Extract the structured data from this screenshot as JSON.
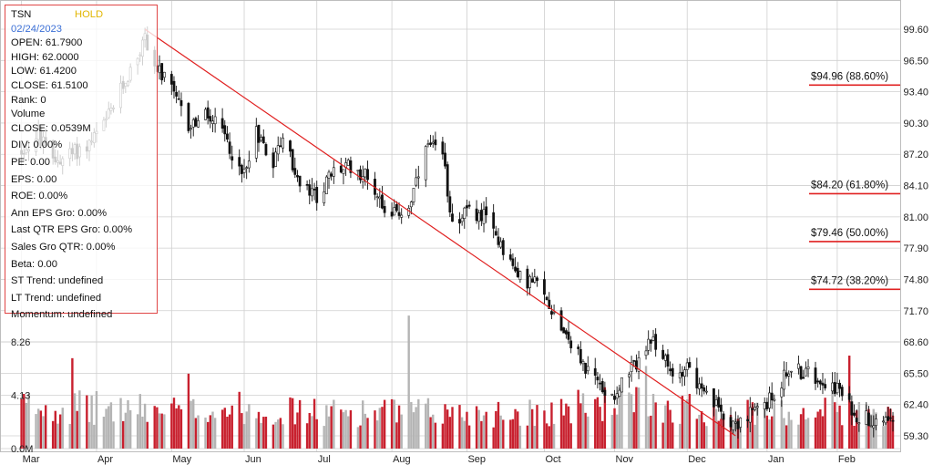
{
  "info": {
    "ticker": "TSN",
    "rating": "HOLD",
    "date": "02/24/2023",
    "open": "OPEN: 61.7900",
    "high": "HIGH: 62.0000",
    "low": "LOW: 61.4200",
    "close": "CLOSE: 61.5100",
    "rank": "Rank: 0",
    "volume_label": "Volume",
    "volume_close": "CLOSE: 0.0539M",
    "div": "DIV: 0.00%",
    "pe": "PE: 0.00",
    "eps": "EPS: 0.00",
    "roe": "ROE: 0.00%",
    "ann_eps_gro": "Ann EPS Gro: 0.00%",
    "last_qtr_eps_gro": "Last QTR EPS Gro: 0.00%",
    "sales_gro_qtr": "Sales Gro QTR: 0.00%",
    "beta": "Beta: 0.00",
    "st_trend": "ST Trend: undefined",
    "lt_trend": "LT Trend: undefined",
    "momentum": "Momentum: undefined"
  },
  "colors": {
    "trendline": "#e02020",
    "fib_line": "#e02020",
    "candle": "#111111",
    "volume_up": "#c8202e",
    "volume_down": "#b4b4b4",
    "grid": "#cfcfcf",
    "panel_border": "#e04545",
    "rating": "#e2b600",
    "date": "#3b6fd6"
  },
  "chart_data": {
    "type": "candlestick",
    "y_ticks": [
      "99.60",
      "96.50",
      "93.40",
      "90.30",
      "87.20",
      "84.10",
      "81.00",
      "77.90",
      "74.80",
      "71.70",
      "68.60",
      "65.50",
      "62.40",
      "59.30"
    ],
    "volume_ticks": [
      "8.26",
      "4.13",
      "0.0M"
    ],
    "months": [
      "Mar",
      "Apr",
      "May",
      "Jun",
      "Jul",
      "Aug",
      "Sep",
      "Oct",
      "Nov",
      "Dec",
      "Jan",
      "Feb"
    ],
    "fib_levels": [
      {
        "label": "$94.96 (88.60%)",
        "price": 94.96
      },
      {
        "label": "$84.20 (61.80%)",
        "price": 84.2
      },
      {
        "label": "$79.46 (50.00%)",
        "price": 79.46
      },
      {
        "label": "$74.72 (38.20%)",
        "price": 74.72
      }
    ],
    "trendline": {
      "from": {
        "date": "2022-04-21",
        "price": 99.6
      },
      "to": {
        "date": "2022-12-21",
        "price": 59.3
      }
    },
    "price_anchors": [
      [
        "2022-03-01",
        87.5
      ],
      [
        "2022-03-08",
        89.0
      ],
      [
        "2022-03-14",
        86.5
      ],
      [
        "2022-03-21",
        87.2
      ],
      [
        "2022-03-28",
        88.0
      ],
      [
        "2022-04-04",
        90.0
      ],
      [
        "2022-04-11",
        93.5
      ],
      [
        "2022-04-19",
        97.5
      ],
      [
        "2022-04-21",
        98.8
      ],
      [
        "2022-04-25",
        96.0
      ],
      [
        "2022-05-02",
        93.5
      ],
      [
        "2022-05-09",
        90.0
      ],
      [
        "2022-05-16",
        91.0
      ],
      [
        "2022-05-23",
        89.5
      ],
      [
        "2022-05-31",
        85.0
      ],
      [
        "2022-06-06",
        89.5
      ],
      [
        "2022-06-13",
        86.5
      ],
      [
        "2022-06-17",
        89.0
      ],
      [
        "2022-06-24",
        84.0
      ],
      [
        "2022-07-01",
        83.0
      ],
      [
        "2022-07-08",
        85.5
      ],
      [
        "2022-07-15",
        86.0
      ],
      [
        "2022-07-22",
        85.0
      ],
      [
        "2022-07-29",
        82.0
      ],
      [
        "2022-08-03",
        81.2
      ],
      [
        "2022-08-08",
        82.0
      ],
      [
        "2022-08-12",
        85.0
      ],
      [
        "2022-08-16",
        88.0
      ],
      [
        "2022-08-22",
        87.0
      ],
      [
        "2022-08-26",
        80.5
      ],
      [
        "2022-09-01",
        81.5
      ],
      [
        "2022-09-08",
        81.0
      ],
      [
        "2022-09-15",
        78.5
      ],
      [
        "2022-09-22",
        75.0
      ],
      [
        "2022-09-29",
        74.5
      ],
      [
        "2022-10-06",
        72.0
      ],
      [
        "2022-10-13",
        69.0
      ],
      [
        "2022-10-20",
        66.0
      ],
      [
        "2022-10-27",
        64.0
      ],
      [
        "2022-11-01",
        63.5
      ],
      [
        "2022-11-07",
        65.5
      ],
      [
        "2022-11-14",
        68.0
      ],
      [
        "2022-11-18",
        68.5
      ],
      [
        "2022-11-25",
        65.0
      ],
      [
        "2022-12-01",
        66.5
      ],
      [
        "2022-12-07",
        63.5
      ],
      [
        "2022-12-14",
        62.0
      ],
      [
        "2022-12-21",
        60.5
      ],
      [
        "2022-12-28",
        61.5
      ],
      [
        "2023-01-05",
        63.0
      ],
      [
        "2023-01-12",
        66.0
      ],
      [
        "2023-01-19",
        65.5
      ],
      [
        "2023-01-26",
        65.0
      ],
      [
        "2023-02-01",
        64.0
      ],
      [
        "2023-02-08",
        61.5
      ],
      [
        "2023-02-15",
        61.0
      ],
      [
        "2023-02-24",
        61.5
      ]
    ],
    "volume_anchors": [
      [
        "2022-03-01",
        3.5
      ],
      [
        "2022-04-01",
        3.3
      ],
      [
        "2022-05-01",
        3.1
      ],
      [
        "2022-06-01",
        3.3
      ],
      [
        "2022-07-01",
        2.9
      ],
      [
        "2022-08-01",
        3.0
      ],
      [
        "2022-09-01",
        2.9
      ],
      [
        "2022-10-01",
        3.0
      ],
      [
        "2022-11-01",
        3.8
      ],
      [
        "2022-12-01",
        3.3
      ],
      [
        "2023-01-01",
        2.8
      ],
      [
        "2023-02-01",
        3.2
      ],
      [
        "2023-02-24",
        2.6
      ]
    ],
    "volume_spikes": [
      [
        "2022-03-22",
        7.0
      ],
      [
        "2022-05-09",
        5.8
      ],
      [
        "2022-08-08",
        10.3
      ],
      [
        "2022-11-14",
        6.4
      ],
      [
        "2023-02-06",
        7.2
      ],
      [
        "2023-01-30",
        4.5
      ]
    ],
    "ylim": [
      59.3,
      99.6
    ],
    "volume_max": 8.26
  }
}
